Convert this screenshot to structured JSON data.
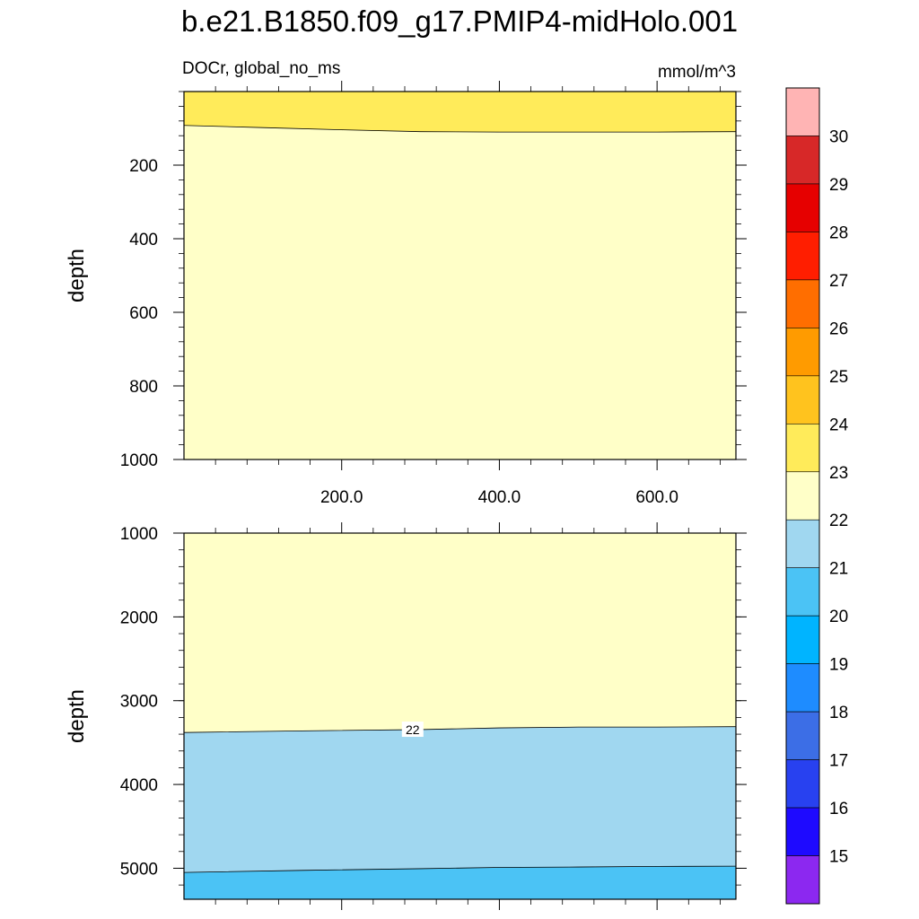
{
  "figure": {
    "title": "b.e21.B1850.f09_g17.PMIP4-midHolo.001",
    "variable_label": "DOCr, global_no_ms",
    "units_label": "mmol/m^3"
  },
  "chart_data": [
    {
      "type": "contour",
      "panel": "upper",
      "ylabel": "depth",
      "xlabel": "",
      "xlim": [
        0,
        700
      ],
      "ylim": [
        1000,
        0
      ],
      "y_reversed": true,
      "xticks": [
        200.0,
        400.0,
        600.0
      ],
      "xtick_labels": [
        "200.0",
        "400.0",
        "600.0"
      ],
      "yticks": [
        200,
        400,
        600,
        800,
        1000
      ],
      "ytick_labels": [
        "200",
        "400",
        "600",
        "800",
        "1000"
      ],
      "bands": [
        {
          "range": [
            23,
            24
          ],
          "color": "#ffeb5a",
          "boundary_depth_x": [
            0,
            300,
            700
          ],
          "boundary_depth": [
            92,
            110,
            110
          ]
        },
        {
          "range": [
            22,
            23
          ],
          "color": "#ffffc8"
        }
      ],
      "contour_lines": [
        {
          "level": 23,
          "x": [
            0,
            100,
            200,
            300,
            400,
            500,
            600,
            700
          ],
          "depth": [
            92,
            98,
            104,
            109,
            110,
            110,
            110,
            109
          ]
        }
      ]
    },
    {
      "type": "contour",
      "panel": "lower",
      "ylabel": "depth",
      "xlabel": "",
      "xlim": [
        0,
        700
      ],
      "ylim": [
        5370,
        1000
      ],
      "y_reversed": true,
      "xticks": [
        200.0,
        400.0,
        600.0
      ],
      "yticks": [
        1000,
        2000,
        3000,
        4000,
        5000
      ],
      "ytick_labels": [
        "1000",
        "2000",
        "3000",
        "4000",
        "5000"
      ],
      "bands": [
        {
          "range": [
            22,
            23
          ],
          "color": "#ffffc8"
        },
        {
          "range": [
            21,
            22
          ],
          "color": "#a0d7f0"
        },
        {
          "range": [
            20,
            21
          ],
          "color": "#4bc3f5"
        }
      ],
      "contour_lines": [
        {
          "level": 22,
          "x": [
            0,
            150,
            300,
            400,
            500,
            600,
            700
          ],
          "depth": [
            3380,
            3360,
            3345,
            3325,
            3315,
            3315,
            3310
          ],
          "label": "22",
          "label_x": 290
        },
        {
          "level": 21,
          "x": [
            0,
            150,
            300,
            400,
            500,
            600,
            700
          ],
          "depth": [
            5050,
            5025,
            5005,
            4990,
            4985,
            4978,
            4975
          ]
        }
      ]
    },
    {
      "type": "colorbar",
      "levels": [
        15,
        16,
        17,
        18,
        19,
        20,
        21,
        22,
        23,
        24,
        25,
        26,
        27,
        28,
        29,
        30
      ],
      "labels": [
        "15",
        "16",
        "17",
        "18",
        "19",
        "20",
        "21",
        "22",
        "23",
        "24",
        "25",
        "26",
        "27",
        "28",
        "29",
        "30"
      ],
      "colors": [
        "#ffb4b4",
        "#d72828",
        "#e60000",
        "#ff1e00",
        "#ff6e00",
        "#ff9b00",
        "#ffc31e",
        "#ffeb5a",
        "#ffffc8",
        "#a0d7f0",
        "#4bc3f5",
        "#00b4ff",
        "#1e8cff",
        "#3c6ee6",
        "#2841f0",
        "#1e0aff",
        "#8c28f0"
      ]
    }
  ]
}
